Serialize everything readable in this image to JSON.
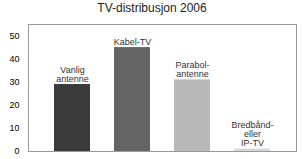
{
  "chart_data": {
    "type": "bar",
    "title": "TV-distribusjon 2006",
    "categories": [
      "Vanlig\nantenne",
      "Kabel-TV",
      "Parabol-\nantenne",
      "Bredbånd-\neller\nIP-TV"
    ],
    "values": [
      29,
      45,
      31,
      1
    ],
    "colors": [
      "#3a3a3a",
      "#646464",
      "#b8b8b8",
      "#d4d4d4"
    ],
    "ylim": [
      0,
      55
    ],
    "yticks": [
      0,
      10,
      20,
      30,
      40,
      50
    ],
    "grid": false,
    "tick_labels": "y"
  }
}
